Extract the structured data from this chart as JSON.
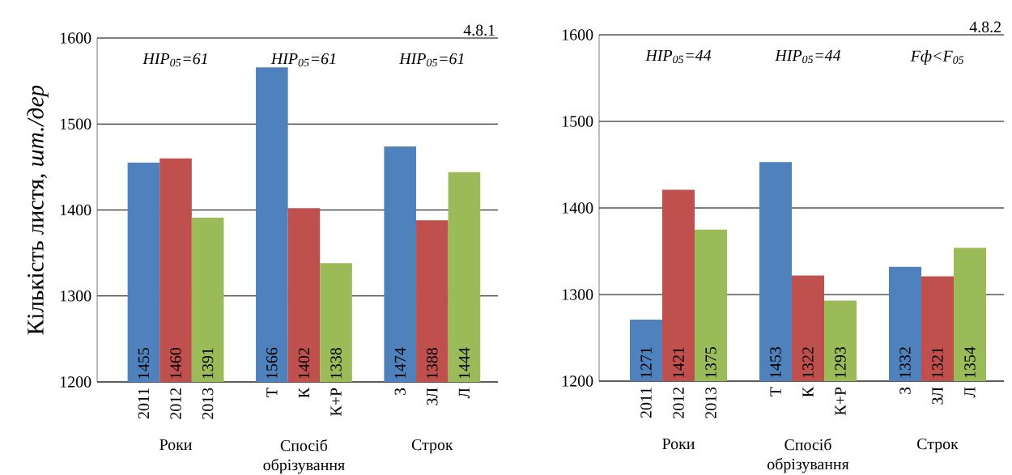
{
  "chart_data": [
    {
      "type": "bar",
      "title": "4.8.1",
      "ylabel": "Кількість листя, *шт./дер*",
      "categories": [
        "2011",
        "2012",
        "2013",
        null,
        "Т",
        "К",
        "К+Р",
        null,
        "З",
        "ЗЛ",
        "Л"
      ],
      "values": [
        1455,
        1460,
        1391,
        null,
        1566,
        1402,
        1338,
        null,
        1474,
        1388,
        1444
      ],
      "colors": [
        "#4f81bd",
        "#c0504d",
        "#9bbb59",
        null,
        "#4f81bd",
        "#c0504d",
        "#9bbb59",
        null,
        "#4f81bd",
        "#c0504d",
        "#9bbb59"
      ],
      "ylim": [
        1200,
        1600
      ],
      "yticks": [
        1200,
        1300,
        1400,
        1500,
        1600
      ],
      "grid": "y",
      "data_labels": true,
      "annotations": [
        "HIP$_{05}$=61",
        "HIP$_{05}$=61",
        "HIP$_{05}$=61",
        "Роки",
        "Спосіб обрізування",
        "Строк"
      ]
    },
    {
      "type": "bar",
      "title": "4.8.2",
      "categories": [
        "2011",
        "2012",
        "2013",
        null,
        "Т",
        "К",
        "К+Р",
        null,
        "З",
        "ЗЛ",
        "Л"
      ],
      "values": [
        1271,
        1421,
        1375,
        null,
        1453,
        1322,
        1293,
        null,
        1332,
        1321,
        1354
      ],
      "colors": [
        "#4f81bd",
        "#c0504d",
        "#9bbb59",
        null,
        "#4f81bd",
        "#c0504d",
        "#9bbb59",
        null,
        "#4f81bd",
        "#c0504d",
        "#9bbb59"
      ],
      "ylim": [
        1200,
        1600
      ],
      "yticks": [
        1200,
        1300,
        1400,
        1500,
        1600
      ],
      "grid": "y",
      "data_labels": true,
      "annotations": [
        "HIP$_{05}$=44",
        "HIP$_{05}$=44",
        "Fф<F$_{05}$",
        "Роки",
        "Спосіб обрізування",
        "Строк"
      ]
    }
  ]
}
